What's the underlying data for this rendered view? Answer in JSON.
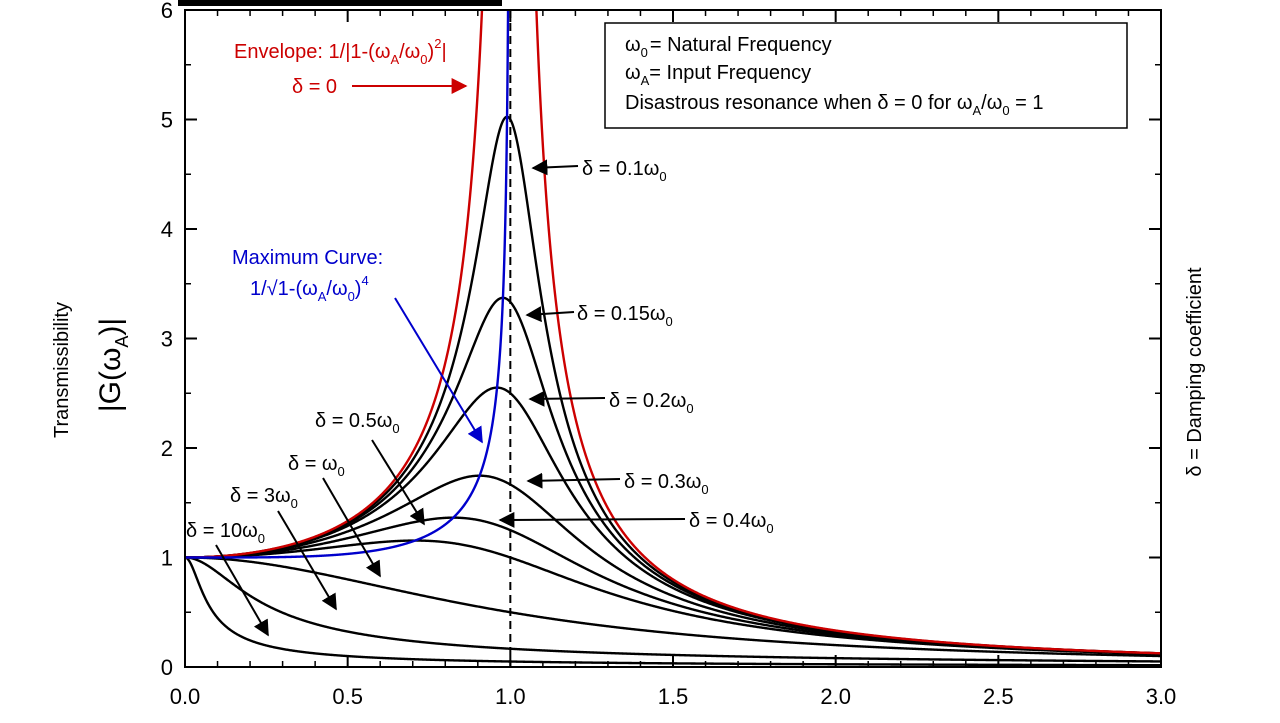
{
  "chart_data": {
    "type": "line",
    "xlim": [
      0,
      3.0
    ],
    "ylim": [
      0,
      6
    ],
    "x_ticks": [
      "0.0",
      "0.5",
      "1.0",
      "1.5",
      "2.0",
      "2.5",
      "3.0"
    ],
    "y_ticks": [
      "0",
      "1",
      "2",
      "3",
      "4",
      "5",
      "6"
    ],
    "ylabel_top": "Transmissibility",
    "ylabel_main": "|G(ω",
    "ylabel_sub": "A",
    "ylabel_end": ")|",
    "right_label": "δ = Damping coefficient",
    "resonance_line_x": 1.0,
    "series": [
      {
        "damping_ratio": 0.1,
        "color": "#000000"
      },
      {
        "damping_ratio": 0.15,
        "color": "#000000"
      },
      {
        "damping_ratio": 0.2,
        "color": "#000000"
      },
      {
        "damping_ratio": 0.3,
        "color": "#000000"
      },
      {
        "damping_ratio": 0.4,
        "color": "#000000"
      },
      {
        "damping_ratio": 0.5,
        "color": "#000000"
      },
      {
        "damping_ratio": 1,
        "color": "#000000"
      },
      {
        "damping_ratio": 3,
        "color": "#000000"
      },
      {
        "damping_ratio": 10,
        "color": "#000000"
      }
    ],
    "envelope": {
      "color": "#cc0000",
      "label_prefix": "Envelope: 1/|1-(ω",
      "label_sub1": "A",
      "label_mid": "/ω",
      "label_sub2": "0",
      "label_end": ")",
      "label_sup": "2",
      "label_close": "|",
      "delta_zero": "δ = 0"
    },
    "maximum_curve": {
      "color": "#0000cc",
      "label_title": "Maximum Curve:",
      "label_prefix": "1/√1-(ω",
      "label_sub1": "A",
      "label_mid": "/ω",
      "label_sub2": "0",
      "label_end": ")",
      "label_sup": "4"
    },
    "legend": {
      "line1_sym": "ω",
      "line1_sub": "0",
      "line1_text": "= Natural Frequency",
      "line2_sym": "ω",
      "line2_sub": "A",
      "line2_text": "= Input Frequency",
      "line3_text": "Disastrous  resonance when δ = 0 for ω",
      "line3_sub1": "A",
      "line3_mid": "/ω",
      "line3_sub2": "0",
      "line3_end": " = 1"
    },
    "curve_labels": [
      {
        "prefix": "δ = 0.1ω",
        "sub": "0"
      },
      {
        "prefix": "δ = 0.15ω",
        "sub": "0"
      },
      {
        "prefix": "δ = 0.2ω",
        "sub": "0"
      },
      {
        "prefix": "δ = 0.3ω",
        "sub": "0"
      },
      {
        "prefix": "δ = 0.4ω",
        "sub": "0"
      },
      {
        "prefix": "δ = 0.5ω",
        "sub": "0"
      },
      {
        "prefix": "δ = ω",
        "sub": "0"
      },
      {
        "prefix": "δ = 3ω",
        "sub": "0"
      },
      {
        "prefix": "δ = 10ω",
        "sub": "0"
      }
    ]
  }
}
